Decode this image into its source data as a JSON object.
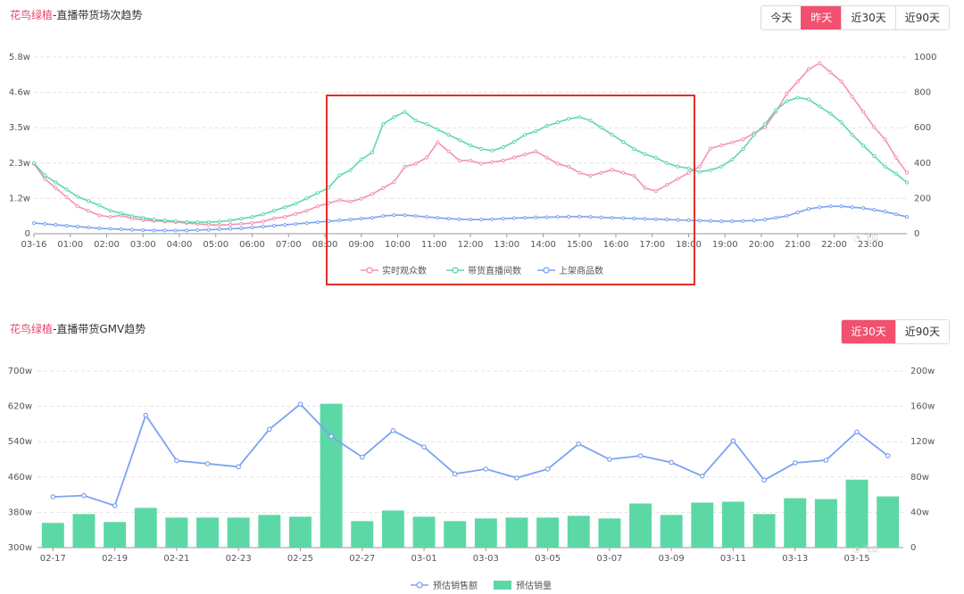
{
  "top": {
    "title_brand": "花鸟绿植",
    "title_rest": "-直播带货场次趋势",
    "buttons": [
      {
        "label": "今天",
        "active": false
      },
      {
        "label": "昨天",
        "active": true
      },
      {
        "label": "近30天",
        "active": false
      },
      {
        "label": "近90天",
        "active": false
      }
    ]
  },
  "bottom": {
    "title_brand": "花鸟绿植",
    "title_rest": "-直播带货GMV趋势",
    "buttons": [
      {
        "label": "近30天",
        "active": true
      },
      {
        "label": "近90天",
        "active": false
      }
    ]
  },
  "colors": {
    "pink": "#f392b2",
    "green": "#5ed8a9",
    "blue": "#7ba2f3",
    "bar": "#5cd8a6",
    "highlight": "#e0302a"
  },
  "chart_data": [
    {
      "type": "line",
      "title": "花鸟绿植-直播带货场次趋势",
      "x_ticks": [
        "03-16",
        "01:00",
        "02:00",
        "03:00",
        "04:00",
        "05:00",
        "06:00",
        "07:00",
        "08:00",
        "09:00",
        "10:00",
        "11:00",
        "12:00",
        "13:00",
        "14:00",
        "15:00",
        "16:00",
        "17:00",
        "18:00",
        "19:00",
        "20:00",
        "21:00",
        "22:00",
        "23:00"
      ],
      "y_left_ticks": [
        "0",
        "1.2w",
        "2.3w",
        "3.5w",
        "4.6w",
        "5.8w"
      ],
      "y_left_range": [
        0,
        58000
      ],
      "y_right_ticks": [
        "0",
        "200",
        "400",
        "600",
        "800",
        "1000"
      ],
      "y_right_range": [
        0,
        1000
      ],
      "grid": true,
      "legend_position": "bottom",
      "series": [
        {
          "name": "实时观众数",
          "axis": "left",
          "color": "#f392b2",
          "values": [
            23000,
            18000,
            15000,
            12000,
            9000,
            7500,
            6000,
            5500,
            6000,
            5000,
            4500,
            4200,
            4000,
            3800,
            3500,
            3200,
            3000,
            2800,
            3000,
            3200,
            3500,
            4000,
            5000,
            5500,
            6500,
            7500,
            9000,
            10000,
            11000,
            10500,
            11500,
            13000,
            15000,
            17000,
            22000,
            23000,
            25000,
            30000,
            27000,
            24000,
            24000,
            23000,
            23500,
            24000,
            25000,
            26000,
            27000,
            25000,
            23000,
            22000,
            20000,
            19000,
            20000,
            21000,
            20000,
            19000,
            15000,
            14000,
            16000,
            18000,
            20000,
            22000,
            28000,
            29000,
            30000,
            31000,
            33000,
            35000,
            40000,
            46000,
            50000,
            54000,
            56000,
            53000,
            50000,
            45000,
            40000,
            35000,
            31000,
            25000,
            20000
          ]
        },
        {
          "name": "带货直播间数",
          "axis": "right",
          "color": "#5ed8a9",
          "values": [
            400,
            330,
            290,
            250,
            210,
            185,
            160,
            130,
            115,
            100,
            90,
            80,
            75,
            70,
            65,
            65,
            65,
            68,
            75,
            85,
            95,
            110,
            130,
            150,
            170,
            200,
            230,
            260,
            330,
            360,
            420,
            460,
            620,
            660,
            690,
            640,
            620,
            590,
            560,
            530,
            500,
            480,
            470,
            490,
            520,
            560,
            580,
            610,
            630,
            650,
            660,
            640,
            600,
            560,
            520,
            480,
            450,
            430,
            400,
            380,
            370,
            350,
            360,
            380,
            420,
            480,
            560,
            620,
            700,
            750,
            770,
            760,
            720,
            680,
            630,
            560,
            500,
            440,
            380,
            340,
            290
          ]
        },
        {
          "name": "上架商品数",
          "axis": "right",
          "color": "#7ba2f3",
          "values": [
            60,
            55,
            50,
            45,
            40,
            35,
            30,
            28,
            25,
            22,
            20,
            18,
            18,
            18,
            18,
            20,
            22,
            25,
            28,
            30,
            35,
            40,
            45,
            50,
            55,
            60,
            65,
            70,
            75,
            80,
            85,
            90,
            100,
            105,
            105,
            100,
            95,
            90,
            85,
            82,
            80,
            80,
            82,
            85,
            88,
            90,
            92,
            93,
            95,
            96,
            97,
            95,
            92,
            90,
            88,
            86,
            84,
            82,
            80,
            78,
            76,
            74,
            72,
            70,
            70,
            72,
            75,
            80,
            90,
            100,
            120,
            140,
            150,
            155,
            155,
            150,
            145,
            135,
            125,
            110,
            95
          ]
        }
      ]
    },
    {
      "type": "bar",
      "title": "花鸟绿植-直播带货GMV趋势",
      "x_ticks": [
        "02-17",
        "02-19",
        "02-21",
        "02-23",
        "02-25",
        "02-27",
        "03-01",
        "03-03",
        "03-05",
        "03-07",
        "03-09",
        "03-11",
        "03-13",
        "03-15"
      ],
      "categories": [
        "02-17",
        "02-18",
        "02-19",
        "02-20",
        "02-21",
        "02-22",
        "02-23",
        "02-24",
        "02-25",
        "02-26",
        "02-27",
        "02-28",
        "03-01",
        "03-02",
        "03-03",
        "03-04",
        "03-05",
        "03-06",
        "03-07",
        "03-08",
        "03-09",
        "03-10",
        "03-11",
        "03-12",
        "03-13",
        "03-14",
        "03-15",
        "03-16"
      ],
      "y_left_ticks": [
        "300w",
        "380w",
        "460w",
        "540w",
        "620w",
        "700w"
      ],
      "y_left_range": [
        300,
        700
      ],
      "y_right_ticks": [
        "0",
        "40w",
        "80w",
        "120w",
        "160w",
        "200w"
      ],
      "y_right_range": [
        0,
        200
      ],
      "grid": true,
      "legend_position": "bottom",
      "series": [
        {
          "name": "预估销售额",
          "type": "line",
          "axis": "left",
          "color": "#7ba2f3",
          "values": [
            415,
            418,
            395,
            600,
            497,
            490,
            483,
            568,
            625,
            552,
            505,
            565,
            528,
            467,
            478,
            458,
            478,
            535,
            500,
            508,
            493,
            462,
            542,
            453,
            492,
            498,
            562,
            508
          ]
        },
        {
          "name": "预估销量",
          "type": "bar",
          "axis": "right",
          "color": "#5cd8a6",
          "values": [
            28,
            38,
            29,
            45,
            34,
            34,
            34,
            37,
            35,
            163,
            30,
            42,
            35,
            30,
            33,
            34,
            34,
            36,
            33,
            50,
            37,
            51,
            52,
            38,
            56,
            55,
            77,
            58
          ]
        }
      ]
    }
  ]
}
